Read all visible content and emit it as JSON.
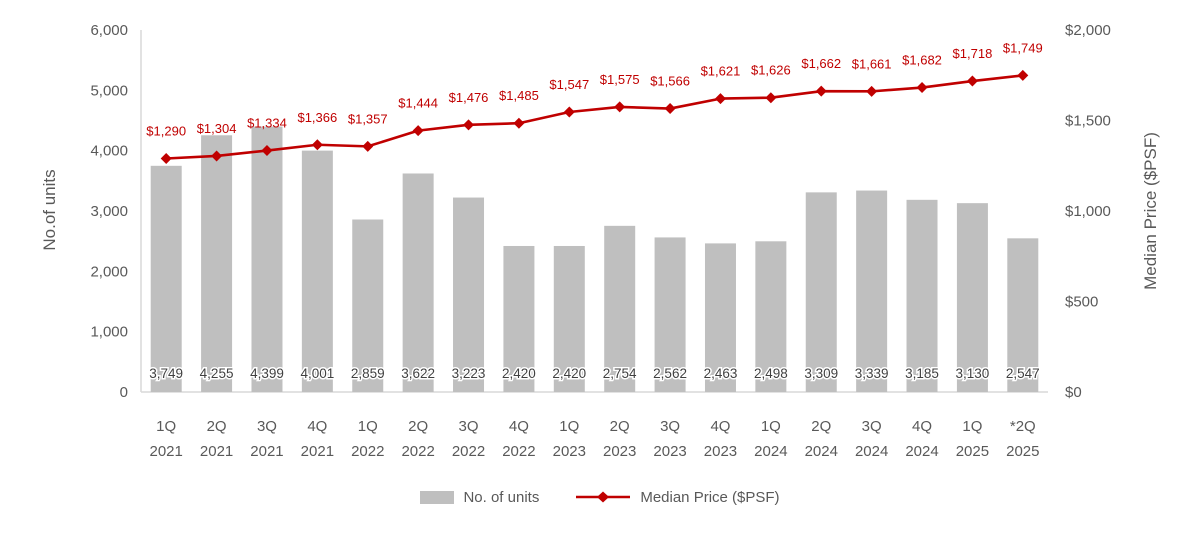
{
  "chart_data": {
    "type": "combo-bar-line",
    "title": "",
    "categories": [
      "1Q 2021",
      "2Q 2021",
      "3Q 2021",
      "4Q 2021",
      "1Q 2022",
      "2Q 2022",
      "3Q 2022",
      "4Q 2022",
      "1Q 2023",
      "2Q 2023",
      "3Q 2023",
      "4Q 2023",
      "1Q 2024",
      "2Q 2024",
      "3Q 2024",
      "4Q 2024",
      "1Q 2025",
      "*2Q 2025"
    ],
    "series": [
      {
        "name": "No. of units",
        "type": "bar",
        "axis": "left",
        "color": "#BFBFBF",
        "values": [
          3749,
          4255,
          4399,
          4001,
          2859,
          3622,
          3223,
          2420,
          2420,
          2754,
          2562,
          2463,
          2498,
          3309,
          3339,
          3185,
          3130,
          2547
        ],
        "labels": [
          "3,749",
          "4,255",
          "4,399",
          "4,001",
          "2,859",
          "3,622",
          "3,223",
          "2,420",
          "2,420",
          "2,754",
          "2,562",
          "2,463",
          "2,498",
          "3,309",
          "3,339",
          "3,185",
          "3,130",
          "2,547"
        ]
      },
      {
        "name": "Median Price ($PSF)",
        "type": "line",
        "axis": "right",
        "color": "#C00000",
        "values": [
          1290,
          1304,
          1334,
          1366,
          1357,
          1444,
          1476,
          1485,
          1547,
          1575,
          1566,
          1621,
          1626,
          1662,
          1661,
          1682,
          1718,
          1749
        ],
        "labels": [
          "$1,290",
          "$1,304",
          "$1,334",
          "$1,366",
          "$1,357",
          "$1,444",
          "$1,476",
          "$1,485",
          "$1,547",
          "$1,575",
          "$1,566",
          "$1,621",
          "$1,626",
          "$1,662",
          "$1,661",
          "$1,682",
          "$1,718",
          "$1,749"
        ]
      }
    ],
    "left_axis": {
      "title": "No.of units",
      "min": 0,
      "max": 6000,
      "tick_labels": [
        "6,000",
        "5,000",
        "4,000",
        "3,000",
        "2,000",
        "1,000",
        "0"
      ]
    },
    "right_axis": {
      "title": "Median Price ($PSF)",
      "min": 0,
      "max": 2000,
      "tick_labels": [
        "$2,000",
        "$1,500",
        "$1,000",
        "$500",
        "$0"
      ]
    },
    "legend": {
      "position": "bottom",
      "items": [
        "No. of units",
        "Median Price ($PSF)"
      ]
    },
    "grid": false,
    "colors": {
      "bar": "#BFBFBF",
      "line": "#C00000",
      "axis_text": "#595959",
      "bar_label": "#404040",
      "axis_line": "#D9D9D9"
    }
  }
}
